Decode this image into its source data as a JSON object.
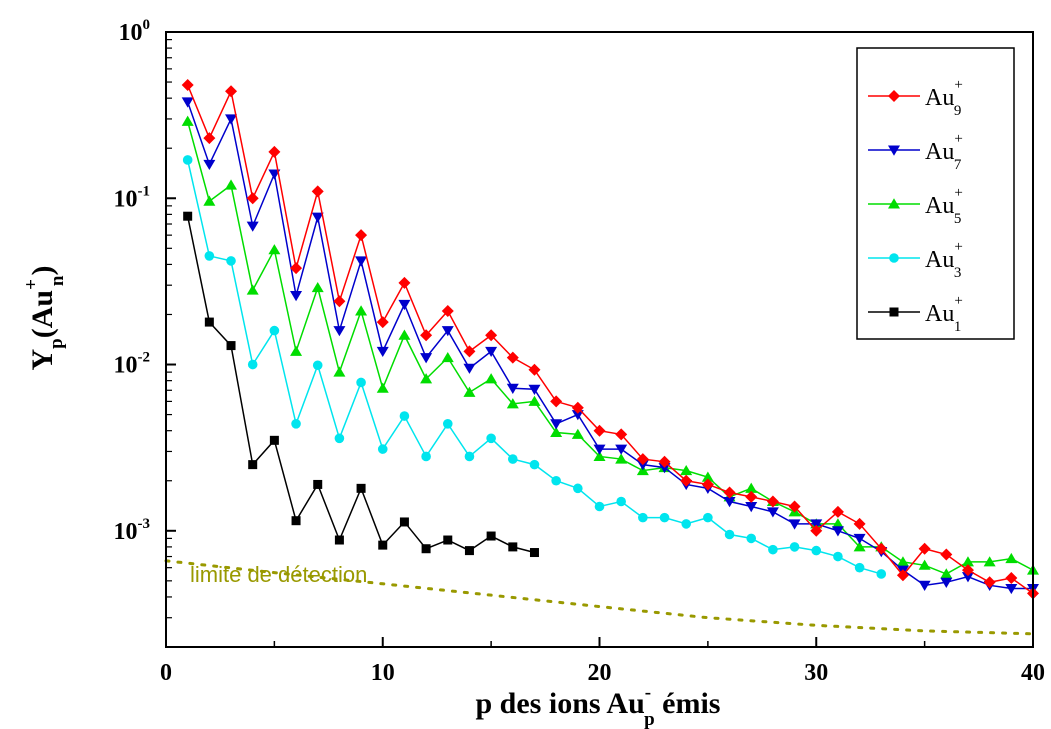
{
  "chart_data": {
    "type": "line",
    "yscale": "log",
    "xlim": [
      0,
      40
    ],
    "ylim": [
      0.0002,
      1
    ],
    "x_ticks": [
      "0",
      "10",
      "20",
      "30",
      "40"
    ],
    "y_ticks": [
      {
        "base": "10",
        "exp": "0",
        "value": 1
      },
      {
        "base": "10",
        "exp": "-1",
        "value": 0.1
      },
      {
        "base": "10",
        "exp": "-2",
        "value": 0.01
      },
      {
        "base": "10",
        "exp": "-3",
        "value": 0.001
      }
    ],
    "xlabel": {
      "pre": "p des ions Au",
      "sup": "-",
      "sub": "p",
      "post": " émis"
    },
    "ylabel": {
      "main": "Y",
      "sub": "p",
      "paren_open": "(Au",
      "sub2": "n",
      "sup2": "+",
      "paren_close": ")"
    },
    "legend_position": "top-right",
    "annotation": "limite de détection",
    "series": [
      {
        "base": "Au",
        "sub": "9",
        "sup": "+",
        "color": "#ff0000",
        "marker": "diamond",
        "x": [
          1,
          2,
          3,
          4,
          5,
          6,
          7,
          8,
          9,
          10,
          11,
          12,
          13,
          14,
          15,
          16,
          17,
          18,
          19,
          20,
          21,
          22,
          23,
          24,
          25,
          26,
          27,
          28,
          29,
          30,
          31,
          32,
          33,
          34,
          35,
          36,
          37,
          38,
          39,
          40
        ],
        "y": [
          0.48,
          0.23,
          0.44,
          0.1,
          0.19,
          0.038,
          0.11,
          0.024,
          0.06,
          0.018,
          0.031,
          0.015,
          0.021,
          0.012,
          0.015,
          0.011,
          0.0093,
          0.006,
          0.0055,
          0.004,
          0.0038,
          0.0027,
          0.0026,
          0.002,
          0.0019,
          0.0017,
          0.0016,
          0.0015,
          0.0014,
          0.001,
          0.0013,
          0.0011,
          0.00078,
          0.00054,
          0.00078,
          0.00072,
          0.00058,
          0.00049,
          0.00052,
          0.00042
        ]
      },
      {
        "base": "Au",
        "sub": "7",
        "sup": "+",
        "color": "#0000cc",
        "marker": "triangle-down",
        "x": [
          1,
          2,
          3,
          4,
          5,
          6,
          7,
          8,
          9,
          10,
          11,
          12,
          13,
          14,
          15,
          16,
          17,
          18,
          19,
          20,
          21,
          22,
          23,
          24,
          25,
          26,
          27,
          28,
          29,
          30,
          31,
          32,
          33,
          34,
          35,
          36,
          37,
          38,
          39,
          40
        ],
        "y": [
          0.38,
          0.16,
          0.3,
          0.068,
          0.14,
          0.026,
          0.077,
          0.016,
          0.042,
          0.012,
          0.023,
          0.011,
          0.016,
          0.0095,
          0.012,
          0.0072,
          0.0071,
          0.0044,
          0.005,
          0.0031,
          0.0031,
          0.0025,
          0.0024,
          0.0019,
          0.0018,
          0.0015,
          0.0014,
          0.0013,
          0.0011,
          0.0011,
          0.001,
          0.0009,
          0.00075,
          0.00058,
          0.00047,
          0.00049,
          0.00053,
          0.00047,
          0.00045,
          0.00045
        ]
      },
      {
        "base": "Au",
        "sub": "5",
        "sup": "+",
        "color": "#00dd00",
        "marker": "triangle-up",
        "x": [
          1,
          2,
          3,
          4,
          5,
          6,
          7,
          8,
          9,
          10,
          11,
          12,
          13,
          14,
          15,
          16,
          17,
          18,
          19,
          20,
          21,
          22,
          23,
          24,
          25,
          26,
          27,
          28,
          29,
          30,
          31,
          32,
          33,
          34,
          35,
          36,
          37,
          38,
          39,
          40
        ],
        "y": [
          0.29,
          0.096,
          0.12,
          0.028,
          0.049,
          0.012,
          0.029,
          0.009,
          0.021,
          0.0072,
          0.015,
          0.0082,
          0.011,
          0.0068,
          0.0082,
          0.0058,
          0.006,
          0.0039,
          0.0038,
          0.0028,
          0.0027,
          0.0023,
          0.0024,
          0.0023,
          0.0021,
          0.0016,
          0.0018,
          0.0015,
          0.0013,
          0.0011,
          0.0011,
          0.0008,
          0.0008,
          0.00065,
          0.00062,
          0.00055,
          0.00065,
          0.00065,
          0.00068,
          0.00058
        ]
      },
      {
        "base": "Au",
        "sub": "3",
        "sup": "+",
        "color": "#00e5ee",
        "marker": "circle",
        "x": [
          1,
          2,
          3,
          4,
          5,
          6,
          7,
          8,
          9,
          10,
          11,
          12,
          13,
          14,
          15,
          16,
          17,
          18,
          19,
          20,
          21,
          22,
          23,
          24,
          25,
          26,
          27,
          28,
          29,
          30,
          31,
          32,
          33
        ],
        "y": [
          0.17,
          0.045,
          0.042,
          0.01,
          0.016,
          0.0044,
          0.0099,
          0.0036,
          0.0078,
          0.0031,
          0.0049,
          0.0028,
          0.0044,
          0.0028,
          0.0036,
          0.0027,
          0.0025,
          0.002,
          0.0018,
          0.0014,
          0.0015,
          0.0012,
          0.0012,
          0.0011,
          0.0012,
          0.00095,
          0.0009,
          0.00077,
          0.0008,
          0.00076,
          0.0007,
          0.0006,
          0.00055
        ]
      },
      {
        "base": "Au",
        "sub": "1",
        "sup": "+",
        "color": "#000000",
        "marker": "square",
        "x": [
          1,
          2,
          3,
          4,
          5,
          6,
          7,
          8,
          9,
          10,
          11,
          12,
          13,
          14,
          15,
          16,
          17
        ],
        "y": [
          0.078,
          0.018,
          0.013,
          0.0025,
          0.0035,
          0.00115,
          0.0019,
          0.00088,
          0.0018,
          0.00082,
          0.00113,
          0.00078,
          0.00088,
          0.00076,
          0.00093,
          0.0008,
          0.00074
        ]
      }
    ],
    "detection_limit": {
      "color": "#999900",
      "x": [
        0,
        5,
        10,
        15,
        20,
        25,
        30,
        35,
        40
      ],
      "y": [
        0.00066,
        0.00056,
        0.00048,
        0.00041,
        0.00035,
        0.0003,
        0.00027,
        0.00025,
        0.00024
      ]
    }
  }
}
